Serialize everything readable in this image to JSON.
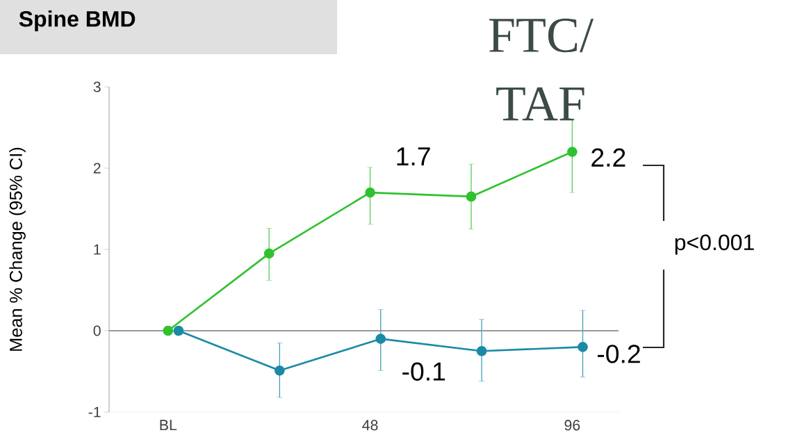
{
  "chart_data": {
    "type": "line",
    "title": "Spine BMD",
    "ylabel": "Mean % Change (95% CI)",
    "x": [
      0,
      24,
      48,
      72,
      96
    ],
    "xlim": [
      -14,
      107
    ],
    "xticks": [
      {
        "value": 0,
        "label": "BL"
      },
      48,
      96
    ],
    "ylim": [
      -1,
      3
    ],
    "yticks": [
      -1,
      0,
      1,
      2,
      3
    ],
    "marker": "circle",
    "line_style": "solid",
    "ref_lines": [
      {
        "axis": "y",
        "value": 0,
        "color": "#777777"
      }
    ],
    "series": [
      {
        "color": "#2fc22f",
        "values": [
          0,
          0.95,
          1.7,
          1.65,
          2.2
        ],
        "errors": [
          null,
          [
            0.62,
            1.26
          ],
          [
            1.31,
            2.01
          ],
          [
            1.25,
            2.05
          ],
          [
            1.7,
            2.6
          ]
        ],
        "value_labels": [
          null,
          null,
          "1.7",
          null,
          "2.2"
        ]
      },
      {
        "color": "#1a8aa6",
        "x": [
          2.5,
          26.5,
          50.5,
          74.5,
          98.5
        ],
        "values": [
          0,
          -0.49,
          -0.1,
          -0.25,
          -0.2
        ],
        "errors": [
          null,
          [
            -0.82,
            -0.15
          ],
          [
            -0.49,
            0.26
          ],
          [
            -0.62,
            0.14
          ],
          [
            -0.57,
            0.25
          ]
        ],
        "value_labels": [
          null,
          null,
          "-0.1",
          null,
          "-0.2"
        ]
      }
    ],
    "annotations": [
      "p<0.001",
      "FTC/ TAF"
    ]
  }
}
